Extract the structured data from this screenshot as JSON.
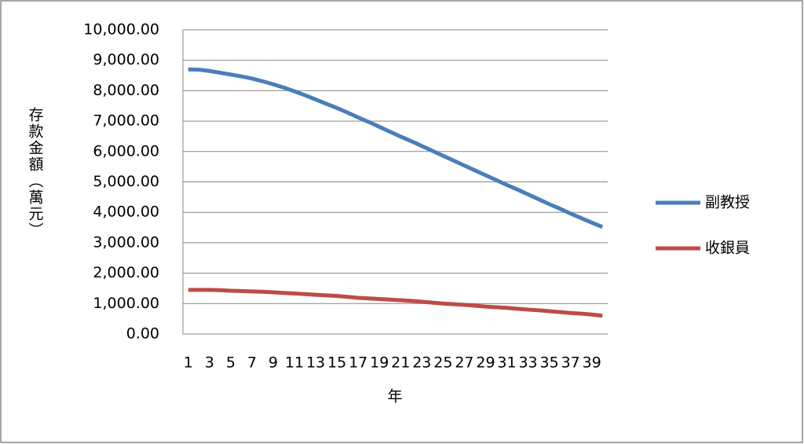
{
  "chart_data": {
    "type": "line",
    "y_label": "存款金額（萬元）",
    "x_label": "年",
    "categories": [
      "1",
      null,
      "3",
      null,
      "5",
      null,
      "7",
      null,
      "9",
      null,
      "11",
      null,
      "13",
      null,
      "15",
      null,
      "17",
      null,
      "19",
      null,
      "21",
      null,
      "23",
      null,
      "25",
      null,
      "27",
      null,
      "29",
      null,
      "31",
      null,
      "33",
      null,
      "35",
      null,
      "37",
      null,
      "39",
      null
    ],
    "series": [
      {
        "name": "副教授",
        "color": "#4a7ebb",
        "values": [
          8700,
          8690,
          8650,
          8590,
          8530,
          8470,
          8400,
          8310,
          8210,
          8100,
          7980,
          7850,
          7710,
          7570,
          7430,
          7280,
          7120,
          6970,
          6810,
          6650,
          6490,
          6340,
          6180,
          6020,
          5860,
          5700,
          5540,
          5380,
          5220,
          5060,
          4900,
          4750,
          4590,
          4430,
          4270,
          4120,
          3960,
          3810,
          3660,
          3520
        ]
      },
      {
        "name": "收銀員",
        "color": "#be4b48",
        "values": [
          1450,
          1450,
          1450,
          1440,
          1420,
          1410,
          1400,
          1390,
          1370,
          1350,
          1330,
          1310,
          1290,
          1270,
          1250,
          1220,
          1190,
          1170,
          1150,
          1130,
          1110,
          1090,
          1060,
          1030,
          1000,
          980,
          960,
          930,
          900,
          880,
          860,
          830,
          800,
          780,
          750,
          720,
          690,
          670,
          640,
          600
        ]
      }
    ],
    "ylim": [
      0,
      10000
    ],
    "yticks": [
      {
        "value": 0,
        "label": "0.00"
      },
      {
        "value": 1000,
        "label": "1,000.00"
      },
      {
        "value": 2000,
        "label": "2,000.00"
      },
      {
        "value": 3000,
        "label": "3,000.00"
      },
      {
        "value": 4000,
        "label": "4,000.00"
      },
      {
        "value": 5000,
        "label": "5,000.00"
      },
      {
        "value": 6000,
        "label": "6,000.00"
      },
      {
        "value": 7000,
        "label": "7,000.00"
      },
      {
        "value": 8000,
        "label": "8,000.00"
      },
      {
        "value": 9000,
        "label": "9,000.00"
      },
      {
        "value": 10000,
        "label": "10,000.00"
      }
    ],
    "grid": true,
    "legend": "right"
  }
}
